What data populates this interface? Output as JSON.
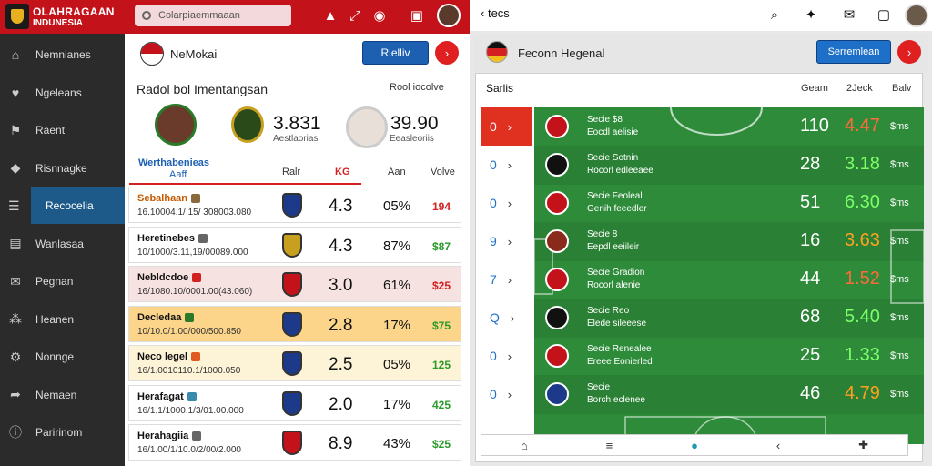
{
  "left": {
    "brand": {
      "line1": "OLAHRAGAAN",
      "line2": "INDUNESIA"
    },
    "search_placeholder": "Colarpiaemmaaan",
    "club": {
      "name": "NeMokai",
      "button": "Rlelliv"
    },
    "sidebar": [
      {
        "label": "Nemnianes",
        "icon": "home-icon"
      },
      {
        "label": "Ngeleans",
        "icon": "badge-icon"
      },
      {
        "label": "Raent",
        "icon": "flag-icon"
      },
      {
        "label": "Risnnagke",
        "icon": "chart-icon"
      },
      {
        "label": "Recocelia",
        "icon": "list-icon",
        "active": true
      },
      {
        "label": "Wanlasaa",
        "icon": "calendar-icon"
      },
      {
        "label": "Pegnan",
        "icon": "mail-icon"
      },
      {
        "label": "Heanen",
        "icon": "users-icon"
      },
      {
        "label": "Nonnge",
        "icon": "settings-icon"
      },
      {
        "label": "Nemaen",
        "icon": "share-icon"
      },
      {
        "label": "Paririnom",
        "icon": "info-icon"
      }
    ],
    "match": {
      "title": "Radol bol Imentangsan",
      "subtitle": "Rool iocolve",
      "score_left": "3.831",
      "score_left_sub": "Aestlaorias",
      "score_right": "39.90",
      "score_right_sub": "Eeasleoriis"
    },
    "table_header": {
      "a": "Werthabenieas",
      "b": "Aaff",
      "c": "Ralr",
      "d": "KG",
      "e": "Aan",
      "f": "Volve"
    },
    "rows": [
      {
        "name": "Sebalhaan",
        "sub": "16.10004.1/ 15/ 308003.080",
        "v1": "4.3",
        "v2": "05%",
        "v3": "194",
        "v3_color": "#d32020",
        "bg": "#ffffff",
        "name_color": "#c45a00",
        "tag_color": "#8a6a3a",
        "shield": "#1d3a8a"
      },
      {
        "name": "Heretinebes",
        "sub": "10/1000/3.11,19/00089.000",
        "v1": "4.3",
        "v2": "87%",
        "v3": "$87",
        "v3_color": "#2a9a2a",
        "bg": "#ffffff",
        "name_color": "#111111",
        "tag_color": "#666666",
        "shield": "#c8a020"
      },
      {
        "name": "Nebldcdoe",
        "sub": "16/1080.10/0001.00(43.060)",
        "v1": "3.0",
        "v2": "61%",
        "v3": "$25",
        "v3_color": "#d32020",
        "bg": "#f6e2e0",
        "name_color": "#111111",
        "tag_color": "#d32020",
        "shield": "#c4121a"
      },
      {
        "name": "Decledaa",
        "sub": "10/10.0/1.00/000/500.850",
        "v1": "2.8",
        "v2": "17%",
        "v3": "$75",
        "v3_color": "#2a9a2a",
        "bg": "#fcd58a",
        "name_color": "#111111",
        "tag_color": "#2a7a2a",
        "shield": "#1d3a8a"
      },
      {
        "name": "Neco legel",
        "sub": "16/1.0010110.1/1000.050",
        "v1": "2.5",
        "v2": "05%",
        "v3": "125",
        "v3_color": "#2a9a2a",
        "bg": "#fdf3d6",
        "name_color": "#111111",
        "tag_color": "#e05a20",
        "shield": "#1d3a8a"
      },
      {
        "name": "Herafagat",
        "sub": "16/1.1/1000.1/3/01.00.000",
        "v1": "2.0",
        "v2": "17%",
        "v3": "425",
        "v3_color": "#2a9a2a",
        "bg": "#ffffff",
        "name_color": "#111111",
        "tag_color": "#3a8ab0",
        "shield": "#1d3a8a"
      },
      {
        "name": "Herahagiia",
        "sub": "16/1.00/1/10.0/2/00/2.000",
        "v1": "8.9",
        "v2": "43%",
        "v3": "$25",
        "v3_color": "#2a9a2a",
        "bg": "#ffffff",
        "name_color": "#111111",
        "tag_color": "#666666",
        "shield": "#c4121a"
      }
    ]
  },
  "right": {
    "back": "tecs",
    "header_title": "Feconn Hegenal",
    "button": "Serremlean",
    "section": "Sarlis",
    "cols": {
      "a": "Geam",
      "b": "2Jeck",
      "c": "Balv"
    },
    "rows": [
      {
        "idx": "0",
        "t1": "Secie  $8",
        "t2": "Eocdl aelisie",
        "n1": "110",
        "n2": "4.47",
        "n2_color": "#ff6a3a",
        "n3": "$ms",
        "badge": "#c4121a",
        "idx_active": true
      },
      {
        "idx": "0",
        "t1": "Secie  Sotnin",
        "t2": "Rocorl edleeaee",
        "n1": "28",
        "n2": "3.18",
        "n2_color": "#7aff6a",
        "n3": "$ms",
        "badge": "#111111"
      },
      {
        "idx": "0",
        "t1": "Secie  Feoleal",
        "t2": "Genih feeedler",
        "n1": "51",
        "n2": "6.30",
        "n2_color": "#7aff6a",
        "n3": "$ms",
        "badge": "#c4121a"
      },
      {
        "idx": "9",
        "t1": "Secie  8",
        "t2": "Eepdl eeiileir",
        "n1": "16",
        "n2": "3.63",
        "n2_color": "#ffa020",
        "n3": "$ms",
        "badge": "#8a2a1a"
      },
      {
        "idx": "7",
        "t1": "Secie  Gradion",
        "t2": "Rocorl alenie",
        "n1": "44",
        "n2": "1.52",
        "n2_color": "#ff6a3a",
        "n3": "$ms",
        "badge": "#c4121a"
      },
      {
        "idx": "Q",
        "t1": "Secie  Reo",
        "t2": "Elede sileeese",
        "n1": "68",
        "n2": "5.40",
        "n2_color": "#7aff6a",
        "n3": "$ms",
        "badge": "#111111"
      },
      {
        "idx": "0",
        "t1": "Secie  Renealee",
        "t2": "Ereee Eonierled",
        "n1": "25",
        "n2": "1.33",
        "n2_color": "#7aff6a",
        "n3": "$ms",
        "badge": "#c4121a"
      },
      {
        "idx": "0",
        "t1": "Secie",
        "t2": "Borch eclenee",
        "n1": "46",
        "n2": "4.79",
        "n2_color": "#ffa020",
        "n3": "$ms",
        "badge": "#1d3a8a"
      }
    ]
  }
}
